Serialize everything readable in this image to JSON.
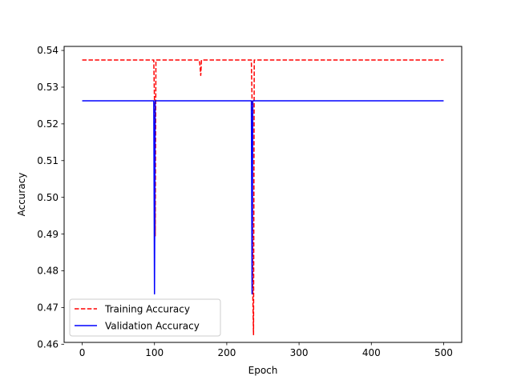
{
  "chart_data": {
    "type": "line",
    "xlabel": "Epoch",
    "ylabel": "Accuracy",
    "xlim": [
      -25,
      525
    ],
    "ylim": [
      0.4605,
      0.5411
    ],
    "xticks": [
      0,
      100,
      200,
      300,
      400,
      500
    ],
    "yticks": [
      0.46,
      0.47,
      0.48,
      0.49,
      0.5,
      0.51,
      0.52,
      0.53,
      0.54
    ],
    "ytick_labels": [
      "0.46",
      "0.47",
      "0.48",
      "0.49",
      "0.50",
      "0.51",
      "0.52",
      "0.53",
      "0.54"
    ],
    "grid": false,
    "legend_position": "lower-left",
    "series": [
      {
        "name": "Training Accuracy",
        "color": "#ff0000",
        "style": "dashed",
        "x": [
          0,
          99,
          100,
          101,
          102,
          103,
          162,
          163,
          164,
          165,
          166,
          234,
          235,
          236,
          237,
          238,
          239,
          500
        ],
        "y": [
          0.5374,
          0.5374,
          0.5263,
          0.4895,
          0.5374,
          0.5374,
          0.5374,
          0.5358,
          0.5332,
          0.5374,
          0.5374,
          0.5374,
          0.5263,
          0.4737,
          0.4626,
          0.5374,
          0.5374,
          0.5374
        ]
      },
      {
        "name": "Validation Accuracy",
        "color": "#0000ff",
        "style": "solid",
        "x": [
          0,
          99,
          100,
          101,
          102,
          234,
          235,
          236,
          237,
          500
        ],
        "y": [
          0.5263,
          0.5263,
          0.4737,
          0.5263,
          0.5263,
          0.5263,
          0.4737,
          0.5263,
          0.5263,
          0.5263
        ]
      }
    ]
  }
}
